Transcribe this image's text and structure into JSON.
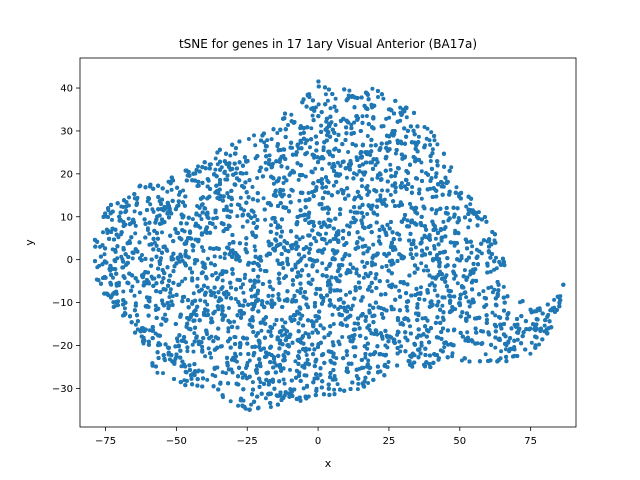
{
  "chart_data": {
    "type": "scatter",
    "title": "tSNE for genes in 17 1ary Visual Anterior (BA17a)",
    "xlabel": "x",
    "ylabel": "y",
    "xlim": [
      -84,
      91
    ],
    "ylim": [
      -39,
      47
    ],
    "xticks": [
      -75,
      -50,
      -25,
      0,
      25,
      50,
      75
    ],
    "yticks": [
      -30,
      -20,
      -10,
      0,
      10,
      20,
      30,
      40
    ],
    "grid": false,
    "legend": "none",
    "color": "#1f77b4",
    "boundary": [
      [
        -79,
        7
      ],
      [
        -75,
        12
      ],
      [
        -70,
        15
      ],
      [
        -65,
        17
      ],
      [
        -55,
        18
      ],
      [
        -48,
        21
      ],
      [
        -40,
        23
      ],
      [
        -32,
        27
      ],
      [
        -20,
        30
      ],
      [
        -10,
        35
      ],
      [
        -3,
        39
      ],
      [
        0,
        42
      ],
      [
        5,
        40
      ],
      [
        12,
        41
      ],
      [
        20,
        40
      ],
      [
        26,
        38
      ],
      [
        33,
        35
      ],
      [
        40,
        30
      ],
      [
        45,
        24
      ],
      [
        52,
        16
      ],
      [
        58,
        11
      ],
      [
        62,
        7
      ],
      [
        65,
        2
      ],
      [
        68,
        -7
      ],
      [
        74,
        -10
      ],
      [
        80,
        -11
      ],
      [
        85,
        -8
      ],
      [
        87,
        -5
      ],
      [
        85,
        -13
      ],
      [
        80,
        -19
      ],
      [
        75,
        -22
      ],
      [
        65,
        -24
      ],
      [
        55,
        -24
      ],
      [
        45,
        -23
      ],
      [
        40,
        -25
      ],
      [
        30,
        -26
      ],
      [
        20,
        -29
      ],
      [
        10,
        -31
      ],
      [
        0,
        -32
      ],
      [
        -10,
        -35
      ],
      [
        -25,
        -35
      ],
      [
        -35,
        -33
      ],
      [
        -45,
        -30
      ],
      [
        -52,
        -28
      ],
      [
        -58,
        -26
      ],
      [
        -62,
        -20
      ],
      [
        -68,
        -14
      ],
      [
        -74,
        -10
      ],
      [
        -78,
        -5
      ],
      [
        -79,
        0
      ]
    ],
    "point_count": 9000
  }
}
